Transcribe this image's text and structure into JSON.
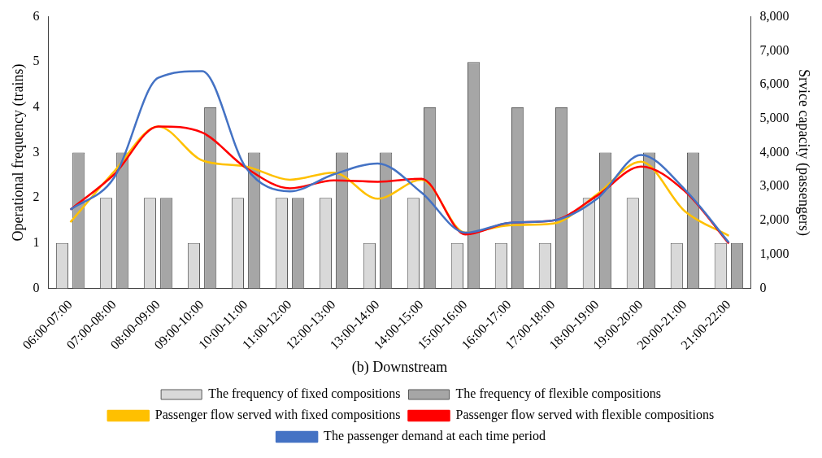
{
  "chart_data": {
    "type": "bar",
    "xlabel": "(b) Downstream",
    "ylabel": "Operational frequency (trains)",
    "y2label": "Srvice capacity (passengers)",
    "categories": [
      "06:00-07:00",
      "07:00-08:00",
      "08:00-09:00",
      "09:00-10:00",
      "10:00-11:00",
      "11:00-12:00",
      "12:00-13:00",
      "13:00-14:00",
      "14:00-15:00",
      "15:00-16:00",
      "16:00-17:00",
      "17:00-18:00",
      "18:00-19:00",
      "19:00-20:00",
      "20:00-21:00",
      "21:00-22:00"
    ],
    "series": [
      {
        "name": "The frequency of fixed compositions",
        "color": "#d9d9d9",
        "values": [
          1,
          2,
          2,
          1,
          2,
          2,
          2,
          1,
          2,
          1,
          1,
          1,
          2,
          2,
          1,
          1
        ]
      },
      {
        "name": "The frequency of flexible compositions",
        "color": "#a6a6a6",
        "values": [
          3,
          3,
          2,
          4,
          3,
          2,
          3,
          3,
          4,
          5,
          4,
          4,
          3,
          3,
          3,
          1
        ]
      },
      {
        "name": "Passenger flow served with fixed compositions",
        "type": "line",
        "axis": "y2",
        "color": "#ffc000",
        "values": [
          1950,
          3450,
          4770,
          3770,
          3590,
          3200,
          3410,
          2640,
          3200,
          1640,
          1860,
          1910,
          2770,
          3730,
          2270,
          1550
        ]
      },
      {
        "name": "Passenger flow served with flexible compositions",
        "type": "line",
        "axis": "y2",
        "color": "#ff0000",
        "values": [
          2320,
          3360,
          4770,
          4590,
          3550,
          2950,
          3180,
          3140,
          3230,
          1590,
          1930,
          2000,
          2730,
          3590,
          2860,
          1320
        ]
      },
      {
        "name": "The passenger demand at each time period",
        "type": "line",
        "axis": "y2",
        "color": "#4472c4",
        "values": [
          2320,
          3270,
          6200,
          6400,
          3550,
          2860,
          3360,
          3680,
          2820,
          1640,
          1930,
          2000,
          2640,
          3930,
          2910,
          1350
        ]
      }
    ],
    "ylim": [
      0,
      6
    ],
    "yticks": [
      0,
      1,
      2,
      3,
      4,
      5,
      6
    ],
    "y2lim": [
      0,
      8000
    ],
    "y2ticks": [
      {
        "value": 0,
        "label": "0"
      },
      {
        "value": 1000,
        "label": "1,000"
      },
      {
        "value": 2000,
        "label": "2,000"
      },
      {
        "value": 3000,
        "label": "3,000"
      },
      {
        "value": 4000,
        "label": "4,000"
      },
      {
        "value": 5000,
        "label": "5,000"
      },
      {
        "value": 6000,
        "label": "6,000"
      },
      {
        "value": 7000,
        "label": "7,000"
      },
      {
        "value": 8000,
        "label": "8,000"
      }
    ],
    "legend": "bottom",
    "marker": "none",
    "line_style": "solid"
  }
}
